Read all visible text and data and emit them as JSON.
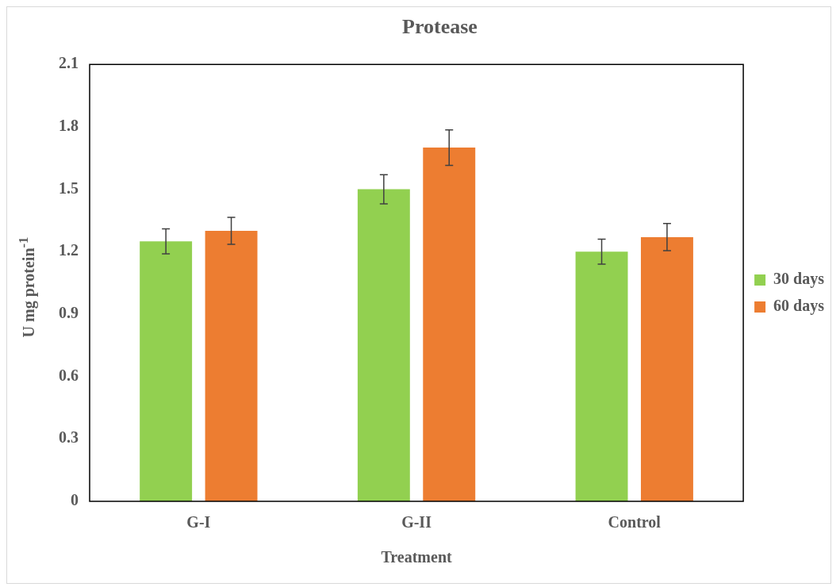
{
  "chart_data": {
    "type": "bar",
    "title": "Protease",
    "xlabel": "Treatment",
    "ylabel": "U mg protein$^{-1}$",
    "categories": [
      "G-I",
      "G-II",
      "Control"
    ],
    "series": [
      {
        "name": "30 days",
        "color": "#92d050",
        "values": [
          1.25,
          1.5,
          1.2
        ],
        "errors": [
          0.06,
          0.07,
          0.06
        ]
      },
      {
        "name": "60 days",
        "color": "#ed7d31",
        "values": [
          1.3,
          1.7,
          1.27
        ],
        "errors": [
          0.065,
          0.085,
          0.065
        ]
      }
    ],
    "ylim": [
      0,
      2.1
    ],
    "yticks": [
      0,
      0.3,
      0.6,
      0.9,
      1.2,
      1.5,
      1.8,
      2.1
    ],
    "grid": false,
    "legend": "right"
  }
}
